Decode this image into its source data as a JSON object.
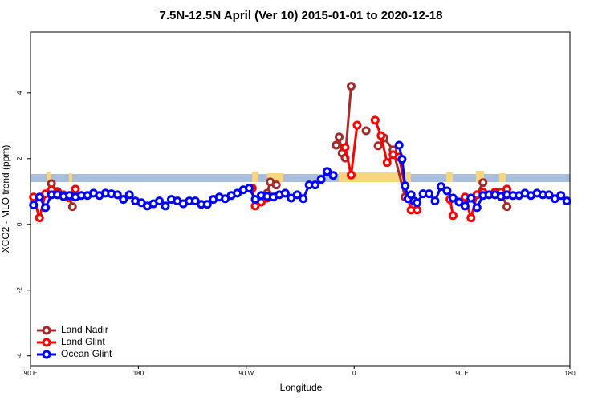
{
  "chart_data": {
    "type": "line",
    "title": "7.5N-12.5N April (Ver 10)   2015-01-01 to 2020-12-18",
    "xlabel": "Longitude",
    "ylabel": "XCO2 - MLO trend (ppm)",
    "xlim": [
      90,
      540
    ],
    "xticks": [
      {
        "value": 90,
        "label": "90 E"
      },
      180,
      {
        "value": 270,
        "label": "90 W"
      },
      {
        "value": 360,
        "label": "0"
      },
      {
        "value": 450,
        "label": "90 E"
      },
      {
        "value": 540,
        "label": "180"
      }
    ],
    "ylim": [
      -4.3,
      5.85
    ],
    "yticks": [
      -4,
      -2,
      0,
      2,
      4
    ],
    "legend": "bottomleft",
    "series": [
      {
        "name": "Land Nadir",
        "color": "#a52a2a",
        "x": [
          107.5,
          112.5,
          117.5,
          122.5,
          125,
          200,
          287.5,
          290,
          295,
          320,
          345,
          347.5,
          350,
          352.5,
          357.5,
          365,
          370,
          375,
          380,
          385,
          392.5,
          402.5,
          430,
          462.5,
          467.5,
          480,
          482.5,
          487.5
        ],
        "values": [
          1.24,
          1.0,
          0.9,
          0.8,
          0.54,
          null,
          0.95,
          1.29,
          1.2,
          null,
          2.41,
          2.66,
          2.17,
          2.02,
          4.2,
          null,
          2.85,
          null,
          2.39,
          2.63,
          2.27,
          0.83,
          null,
          0.9,
          1.27,
          null,
          0.98,
          0.54
        ]
      },
      {
        "name": "Land Glint",
        "color": "#ff0000",
        "x": [
          92.5,
          97.5,
          102.5,
          107.5,
          112.5,
          117.5,
          122.5,
          127.5,
          200,
          275,
          277.5,
          282.5,
          287.5,
          320,
          352.5,
          357.5,
          362.5,
          370,
          377.5,
          382.5,
          387.5,
          392.5,
          397.5,
          402.5,
          407.5,
          412.5,
          430,
          440,
          442.5,
          447.5,
          452.5,
          457.5,
          462.5,
          467.5,
          472.5,
          477.5,
          482.5,
          487.5
        ],
        "values": [
          0.83,
          0.2,
          0.93,
          1.05,
          0.95,
          null,
          0.83,
          1.07,
          null,
          1.1,
          0.56,
          0.68,
          0.8,
          null,
          2.34,
          1.5,
          3.02,
          null,
          3.17,
          2.7,
          1.88,
          2.12,
          2.05,
          1.17,
          0.44,
          0.44,
          null,
          0.76,
          0.27,
          null,
          0.83,
          0.2,
          0.9,
          0.98,
          null,
          0.98,
          null,
          1.07
        ]
      },
      {
        "name": "Ocean Glint",
        "color": "#0000ff",
        "x": [
          92.5,
          97.5,
          102.5,
          107.5,
          112.5,
          117.5,
          122.5,
          127.5,
          132.5,
          137.5,
          142.5,
          147.5,
          152.5,
          157.5,
          162.5,
          167.5,
          172.5,
          177.5,
          182.5,
          187.5,
          192.5,
          197.5,
          202.5,
          207.5,
          212.5,
          217.5,
          222.5,
          227.5,
          232.5,
          237.5,
          242.5,
          247.5,
          252.5,
          257.5,
          262.5,
          267.5,
          272.5,
          277.5,
          282.5,
          287.5,
          292.5,
          297.5,
          302.5,
          307.5,
          312.5,
          317.5,
          322.5,
          327.5,
          332.5,
          337.5,
          342.5,
          370,
          397.5,
          400,
          402.5,
          405,
          407.5,
          410,
          412.5,
          417.5,
          422.5,
          427.5,
          432.5,
          437.5,
          442.5,
          447.5,
          452.5,
          457.5,
          462.5,
          467.5,
          472.5,
          477.5,
          482.5,
          487.5,
          492.5,
          497.5,
          502.5,
          507.5,
          512.5,
          517.5,
          522.5,
          527.5,
          532.5,
          537.5
        ],
        "values": [
          0.59,
          0.83,
          0.51,
          0.9,
          0.9,
          0.85,
          0.88,
          0.83,
          0.88,
          0.88,
          0.95,
          0.88,
          0.95,
          0.93,
          0.9,
          0.76,
          0.9,
          0.71,
          0.66,
          0.56,
          0.63,
          0.71,
          0.56,
          0.76,
          0.71,
          0.63,
          0.71,
          0.71,
          0.61,
          0.61,
          0.76,
          0.83,
          0.78,
          0.88,
          0.95,
          1.05,
          1.1,
          0.76,
          0.88,
          0.85,
          0.83,
          0.9,
          0.95,
          0.8,
          0.9,
          0.78,
          1.2,
          1.2,
          1.37,
          1.61,
          1.49,
          null,
          2.41,
          1.98,
          1.17,
          0.78,
          0.9,
          0.71,
          0.66,
          0.93,
          0.93,
          0.71,
          1.15,
          1.02,
          0.8,
          0.68,
          0.56,
          0.8,
          0.51,
          0.88,
          0.9,
          0.9,
          0.85,
          0.9,
          0.88,
          0.88,
          0.95,
          0.88,
          0.95,
          0.9,
          0.9,
          0.78,
          0.88,
          0.71
        ]
      }
    ]
  }
}
